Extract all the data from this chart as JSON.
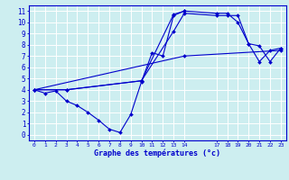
{
  "background_color": "#cdeef0",
  "grid_color": "#ffffff",
  "line_color": "#0000cc",
  "xlabel": "Graphe des températures (°c)",
  "xlim": [
    -0.5,
    23.5
  ],
  "ylim": [
    -0.5,
    11.5
  ],
  "xtick_positions": [
    0,
    1,
    2,
    3,
    4,
    5,
    6,
    7,
    8,
    9,
    10,
    11,
    12,
    13,
    14,
    17,
    18,
    19,
    20,
    21,
    22,
    23
  ],
  "xtick_labels": [
    "0",
    "1",
    "2",
    "3",
    "4",
    "5",
    "6",
    "7",
    "8",
    "9",
    "10",
    "11",
    "12",
    "13",
    "14",
    "17",
    "18",
    "19",
    "20",
    "21",
    "22",
    "23"
  ],
  "ytick_positions": [
    0,
    1,
    2,
    3,
    4,
    5,
    6,
    7,
    8,
    9,
    10,
    11
  ],
  "ytick_labels": [
    "0",
    "1",
    "2",
    "3",
    "4",
    "5",
    "6",
    "7",
    "8",
    "9",
    "10",
    "11"
  ],
  "lines": [
    {
      "x": [
        0,
        1,
        2,
        3,
        4,
        5,
        6,
        7,
        8,
        9,
        10,
        11,
        12,
        13,
        14
      ],
      "y": [
        4,
        3.7,
        3.9,
        3.0,
        2.6,
        2.0,
        1.3,
        0.5,
        0.2,
        1.8,
        4.7,
        7.3,
        7.0,
        10.6,
        11.0
      ]
    },
    {
      "x": [
        0,
        3,
        10,
        13,
        14,
        17,
        18,
        19,
        20,
        21,
        22,
        23
      ],
      "y": [
        4,
        4,
        4.8,
        10.7,
        11.0,
        10.8,
        10.8,
        10.0,
        8.1,
        6.5,
        7.5,
        7.7
      ]
    },
    {
      "x": [
        0,
        3,
        10,
        13,
        14,
        17,
        18,
        19,
        20,
        21,
        22,
        23
      ],
      "y": [
        4,
        4,
        4.8,
        9.2,
        10.8,
        10.6,
        10.6,
        10.6,
        8.1,
        7.9,
        6.5,
        7.7
      ]
    },
    {
      "x": [
        0,
        14,
        23
      ],
      "y": [
        4,
        7.0,
        7.5
      ]
    }
  ],
  "figsize": [
    3.2,
    2.0
  ],
  "dpi": 100
}
